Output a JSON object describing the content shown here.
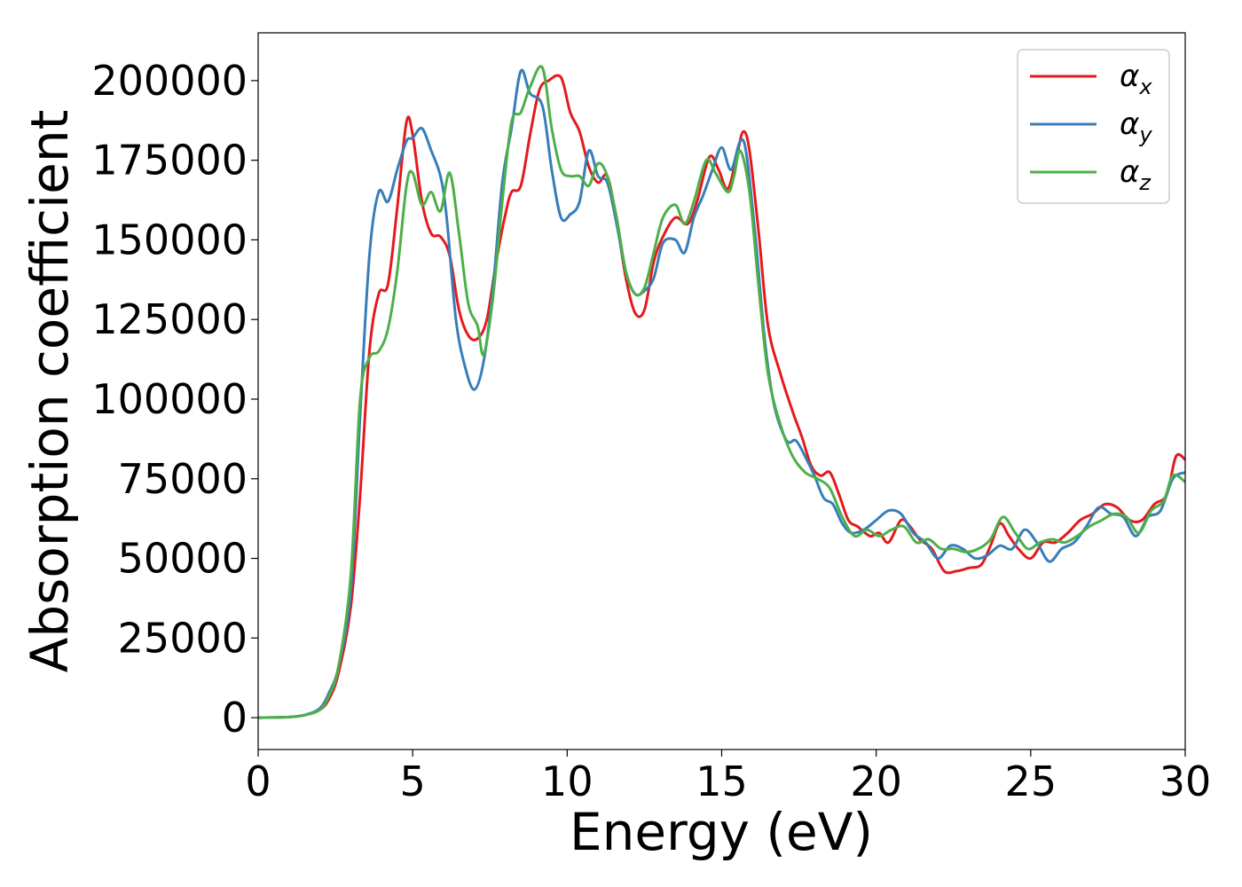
{
  "chart_data": {
    "type": "line",
    "title": "",
    "xlabel": "Energy (eV)",
    "ylabel": "Absorption coefficient",
    "xlim": [
      0,
      30
    ],
    "ylim": [
      -10000,
      215000
    ],
    "x_ticks": [
      "0",
      "5",
      "10",
      "15",
      "20",
      "25",
      "30"
    ],
    "y_ticks": [
      "0",
      "25000",
      "50000",
      "75000",
      "100000",
      "125000",
      "150000",
      "175000",
      "200000"
    ],
    "grid": false,
    "legend": "top-right",
    "series": [
      {
        "name": "α_x",
        "legend_base": "α",
        "legend_sub": "x",
        "color": "#e41a1c",
        "points": [
          [
            0,
            0
          ],
          [
            1,
            200
          ],
          [
            1.5,
            800
          ],
          [
            2,
            2500
          ],
          [
            2.3,
            6000
          ],
          [
            2.6,
            14000
          ],
          [
            3,
            35000
          ],
          [
            3.3,
            70000
          ],
          [
            3.6,
            115000
          ],
          [
            3.9,
            133000
          ],
          [
            4.2,
            136000
          ],
          [
            4.5,
            160000
          ],
          [
            4.8,
            187000
          ],
          [
            5.0,
            183000
          ],
          [
            5.3,
            162000
          ],
          [
            5.6,
            152000
          ],
          [
            5.9,
            151000
          ],
          [
            6.2,
            145000
          ],
          [
            6.5,
            128000
          ],
          [
            6.8,
            120000
          ],
          [
            7.1,
            119000
          ],
          [
            7.4,
            125000
          ],
          [
            7.7,
            143000
          ],
          [
            8.0,
            158000
          ],
          [
            8.2,
            165000
          ],
          [
            8.5,
            167000
          ],
          [
            8.8,
            183000
          ],
          [
            9.1,
            197000
          ],
          [
            9.4,
            200000
          ],
          [
            9.8,
            201000
          ],
          [
            10.1,
            190000
          ],
          [
            10.4,
            184000
          ],
          [
            10.7,
            173000
          ],
          [
            11.0,
            168000
          ],
          [
            11.3,
            170000
          ],
          [
            11.6,
            156000
          ],
          [
            11.9,
            138000
          ],
          [
            12.2,
            127000
          ],
          [
            12.5,
            128000
          ],
          [
            12.8,
            143000
          ],
          [
            13.1,
            151000
          ],
          [
            13.5,
            157000
          ],
          [
            13.9,
            155000
          ],
          [
            14.2,
            162000
          ],
          [
            14.6,
            176000
          ],
          [
            14.9,
            172000
          ],
          [
            15.2,
            166000
          ],
          [
            15.5,
            177000
          ],
          [
            15.7,
            184000
          ],
          [
            15.9,
            178000
          ],
          [
            16.2,
            152000
          ],
          [
            16.5,
            123000
          ],
          [
            16.9,
            108000
          ],
          [
            17.3,
            96000
          ],
          [
            17.6,
            88000
          ],
          [
            17.9,
            79000
          ],
          [
            18.2,
            76000
          ],
          [
            18.5,
            77000
          ],
          [
            18.8,
            70000
          ],
          [
            19.1,
            62000
          ],
          [
            19.4,
            60000
          ],
          [
            19.8,
            57000
          ],
          [
            20.1,
            58000
          ],
          [
            20.4,
            55000
          ],
          [
            20.8,
            62000
          ],
          [
            21.1,
            60000
          ],
          [
            21.4,
            56000
          ],
          [
            21.8,
            53000
          ],
          [
            22.2,
            46000
          ],
          [
            22.6,
            46000
          ],
          [
            23.0,
            47000
          ],
          [
            23.4,
            48000
          ],
          [
            23.7,
            54000
          ],
          [
            24.0,
            61000
          ],
          [
            24.3,
            57000
          ],
          [
            24.6,
            53000
          ],
          [
            25.0,
            50000
          ],
          [
            25.4,
            55000
          ],
          [
            25.8,
            55000
          ],
          [
            26.2,
            58000
          ],
          [
            26.6,
            62000
          ],
          [
            27.0,
            64000
          ],
          [
            27.4,
            67000
          ],
          [
            27.8,
            66000
          ],
          [
            28.2,
            62000
          ],
          [
            28.6,
            62000
          ],
          [
            29.0,
            67000
          ],
          [
            29.4,
            70000
          ],
          [
            29.7,
            82000
          ],
          [
            30,
            81000
          ]
        ]
      },
      {
        "name": "α_y",
        "legend_base": "α",
        "legend_sub": "y",
        "color": "#377eb8",
        "points": [
          [
            0,
            0
          ],
          [
            1,
            200
          ],
          [
            1.5,
            800
          ],
          [
            2,
            3000
          ],
          [
            2.3,
            8000
          ],
          [
            2.6,
            16000
          ],
          [
            3,
            40000
          ],
          [
            3.3,
            95000
          ],
          [
            3.6,
            145000
          ],
          [
            3.9,
            165000
          ],
          [
            4.2,
            162000
          ],
          [
            4.5,
            172000
          ],
          [
            4.8,
            181000
          ],
          [
            5.0,
            182000
          ],
          [
            5.3,
            185000
          ],
          [
            5.6,
            178000
          ],
          [
            5.9,
            170000
          ],
          [
            6.1,
            157000
          ],
          [
            6.4,
            125000
          ],
          [
            6.7,
            110000
          ],
          [
            7.0,
            103000
          ],
          [
            7.3,
            112000
          ],
          [
            7.6,
            135000
          ],
          [
            7.9,
            168000
          ],
          [
            8.2,
            185000
          ],
          [
            8.5,
            203000
          ],
          [
            8.8,
            196000
          ],
          [
            9.2,
            192000
          ],
          [
            9.5,
            172000
          ],
          [
            9.8,
            157000
          ],
          [
            10.1,
            158000
          ],
          [
            10.4,
            162000
          ],
          [
            10.7,
            178000
          ],
          [
            11.0,
            170000
          ],
          [
            11.3,
            168000
          ],
          [
            11.6,
            155000
          ],
          [
            11.9,
            140000
          ],
          [
            12.2,
            133000
          ],
          [
            12.5,
            134000
          ],
          [
            12.8,
            138000
          ],
          [
            13.1,
            149000
          ],
          [
            13.5,
            150000
          ],
          [
            13.8,
            146000
          ],
          [
            14.1,
            157000
          ],
          [
            14.4,
            164000
          ],
          [
            14.7,
            172000
          ],
          [
            15.0,
            179000
          ],
          [
            15.3,
            172000
          ],
          [
            15.6,
            181000
          ],
          [
            15.8,
            177000
          ],
          [
            16.1,
            150000
          ],
          [
            16.4,
            118000
          ],
          [
            16.7,
            98000
          ],
          [
            17.1,
            87000
          ],
          [
            17.4,
            87000
          ],
          [
            17.7,
            82000
          ],
          [
            18.0,
            76000
          ],
          [
            18.3,
            69000
          ],
          [
            18.6,
            67000
          ],
          [
            18.9,
            61000
          ],
          [
            19.2,
            58000
          ],
          [
            19.6,
            59000
          ],
          [
            20.0,
            62000
          ],
          [
            20.4,
            65000
          ],
          [
            20.8,
            64000
          ],
          [
            21.2,
            58000
          ],
          [
            21.6,
            55000
          ],
          [
            22.0,
            50000
          ],
          [
            22.4,
            54000
          ],
          [
            22.8,
            53000
          ],
          [
            23.2,
            50000
          ],
          [
            23.6,
            51000
          ],
          [
            24.0,
            54000
          ],
          [
            24.4,
            53000
          ],
          [
            24.8,
            59000
          ],
          [
            25.2,
            55000
          ],
          [
            25.6,
            49000
          ],
          [
            26.0,
            53000
          ],
          [
            26.4,
            55000
          ],
          [
            26.8,
            60000
          ],
          [
            27.2,
            66000
          ],
          [
            27.6,
            64000
          ],
          [
            28.0,
            63000
          ],
          [
            28.4,
            57000
          ],
          [
            28.8,
            63000
          ],
          [
            29.2,
            65000
          ],
          [
            29.6,
            75000
          ],
          [
            30,
            77000
          ]
        ]
      },
      {
        "name": "α_z",
        "legend_base": "α",
        "legend_sub": "z",
        "color": "#4daf4a",
        "points": [
          [
            0,
            0
          ],
          [
            1,
            200
          ],
          [
            1.5,
            800
          ],
          [
            2,
            2500
          ],
          [
            2.3,
            7000
          ],
          [
            2.6,
            16000
          ],
          [
            3,
            45000
          ],
          [
            3.3,
            100000
          ],
          [
            3.6,
            113000
          ],
          [
            3.9,
            115000
          ],
          [
            4.2,
            122000
          ],
          [
            4.5,
            140000
          ],
          [
            4.8,
            167000
          ],
          [
            5.0,
            171000
          ],
          [
            5.3,
            161000
          ],
          [
            5.6,
            165000
          ],
          [
            5.9,
            159000
          ],
          [
            6.2,
            171000
          ],
          [
            6.5,
            152000
          ],
          [
            6.8,
            130000
          ],
          [
            7.1,
            123000
          ],
          [
            7.3,
            114000
          ],
          [
            7.6,
            132000
          ],
          [
            7.9,
            162000
          ],
          [
            8.2,
            187000
          ],
          [
            8.5,
            190000
          ],
          [
            8.8,
            198000
          ],
          [
            9.2,
            204000
          ],
          [
            9.5,
            185000
          ],
          [
            9.8,
            172000
          ],
          [
            10.1,
            170000
          ],
          [
            10.4,
            170000
          ],
          [
            10.7,
            167000
          ],
          [
            11.0,
            174000
          ],
          [
            11.3,
            170000
          ],
          [
            11.6,
            157000
          ],
          [
            11.9,
            140000
          ],
          [
            12.2,
            133000
          ],
          [
            12.5,
            135000
          ],
          [
            12.8,
            146000
          ],
          [
            13.1,
            157000
          ],
          [
            13.5,
            161000
          ],
          [
            13.8,
            155000
          ],
          [
            14.1,
            162000
          ],
          [
            14.5,
            175000
          ],
          [
            14.8,
            171000
          ],
          [
            15.2,
            165000
          ],
          [
            15.4,
            170000
          ],
          [
            15.6,
            178000
          ],
          [
            15.9,
            165000
          ],
          [
            16.2,
            135000
          ],
          [
            16.5,
            108000
          ],
          [
            16.9,
            92000
          ],
          [
            17.3,
            82000
          ],
          [
            17.7,
            77000
          ],
          [
            18.1,
            75000
          ],
          [
            18.5,
            72000
          ],
          [
            18.9,
            63000
          ],
          [
            19.3,
            57000
          ],
          [
            19.7,
            59000
          ],
          [
            20.1,
            57000
          ],
          [
            20.5,
            59000
          ],
          [
            20.9,
            60000
          ],
          [
            21.3,
            55000
          ],
          [
            21.7,
            56000
          ],
          [
            22.1,
            53000
          ],
          [
            22.5,
            53000
          ],
          [
            22.9,
            52000
          ],
          [
            23.3,
            53000
          ],
          [
            23.7,
            56000
          ],
          [
            24.1,
            63000
          ],
          [
            24.5,
            58000
          ],
          [
            24.9,
            53000
          ],
          [
            25.3,
            55000
          ],
          [
            25.7,
            56000
          ],
          [
            26.1,
            55000
          ],
          [
            26.5,
            57000
          ],
          [
            26.9,
            60000
          ],
          [
            27.3,
            62000
          ],
          [
            27.7,
            64000
          ],
          [
            28.1,
            63000
          ],
          [
            28.5,
            58000
          ],
          [
            28.9,
            65000
          ],
          [
            29.3,
            68000
          ],
          [
            29.6,
            76000
          ],
          [
            30,
            74000
          ]
        ]
      }
    ]
  }
}
